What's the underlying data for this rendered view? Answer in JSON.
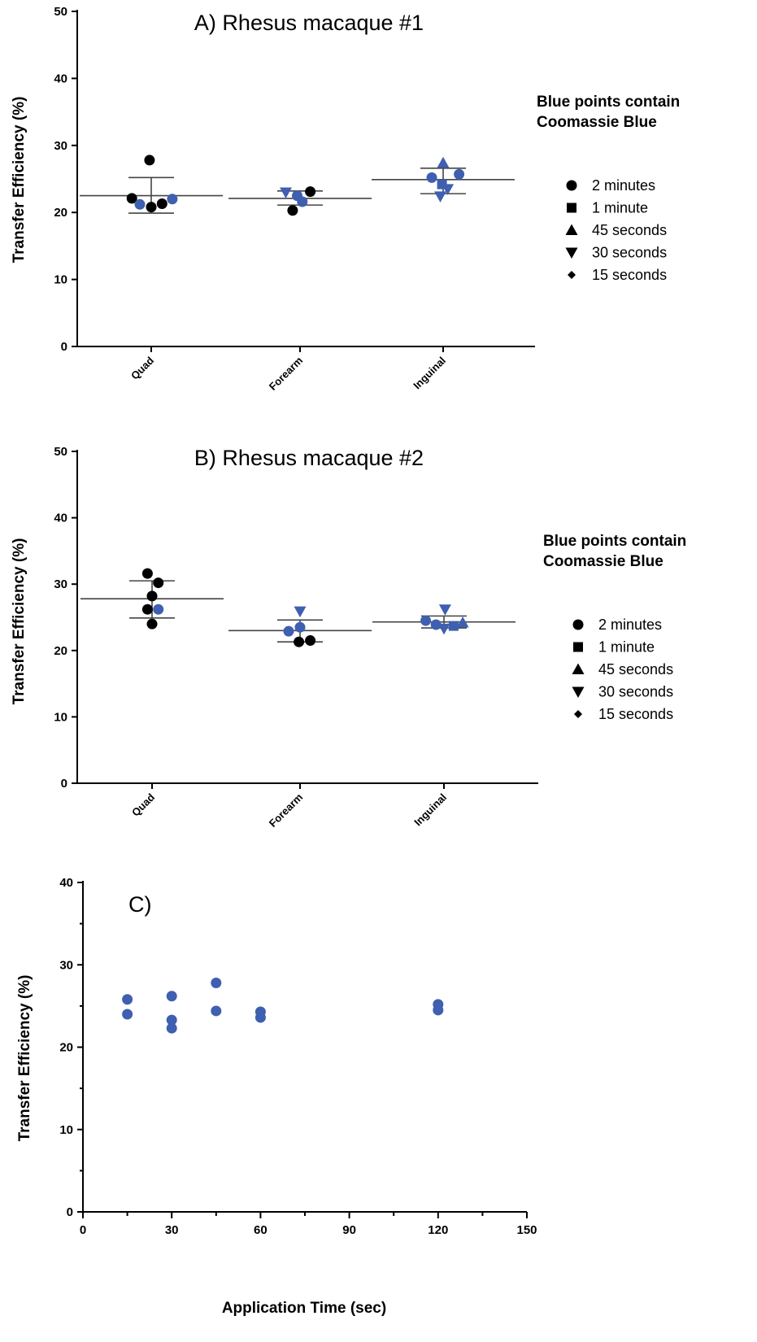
{
  "colors": {
    "blue": "#3f5fb0",
    "black": "#000000",
    "errorbar": "#444444"
  },
  "chart_data": [
    {
      "type": "scatter",
      "title": "A) Rhesus macaque #1",
      "ylabel": "Transfer Efficiency (%)",
      "xlabel": "",
      "categories": [
        "Quad",
        "Forearm",
        "Inguinal"
      ],
      "ylim": [
        0,
        50
      ],
      "yticks": [
        "0",
        "10",
        "20",
        "30",
        "40",
        "50"
      ],
      "note_lines": [
        "Blue points contain",
        "Coomassie Blue"
      ],
      "legend": [
        {
          "marker": "circle",
          "label": "2 minutes"
        },
        {
          "marker": "square",
          "label": "1 minute"
        },
        {
          "marker": "triangle-up",
          "label": "45 seconds"
        },
        {
          "marker": "triangle-down",
          "label": "30 seconds"
        },
        {
          "marker": "diamond",
          "label": "15 seconds"
        }
      ],
      "summary": [
        {
          "category": "Quad",
          "mean": 22.5,
          "sd_low": 19.9,
          "sd_high": 25.2
        },
        {
          "category": "Forearm",
          "mean": 22.1,
          "sd_low": 21.1,
          "sd_high": 23.2
        },
        {
          "category": "Inguinal",
          "mean": 24.9,
          "sd_low": 22.8,
          "sd_high": 26.6
        }
      ],
      "points": [
        {
          "category": "Quad",
          "offset": -0.34,
          "value": 22.1,
          "marker": "circle",
          "color": "black"
        },
        {
          "category": "Quad",
          "offset": -0.2,
          "value": 21.2,
          "marker": "circle",
          "color": "blue"
        },
        {
          "category": "Quad",
          "offset": -0.03,
          "value": 27.8,
          "marker": "circle",
          "color": "black"
        },
        {
          "category": "Quad",
          "offset": 0.0,
          "value": 20.8,
          "marker": "circle",
          "color": "black"
        },
        {
          "category": "Quad",
          "offset": 0.19,
          "value": 21.3,
          "marker": "circle",
          "color": "black"
        },
        {
          "category": "Quad",
          "offset": 0.37,
          "value": 22.0,
          "marker": "circle",
          "color": "blue"
        },
        {
          "category": "Forearm",
          "offset": -0.25,
          "value": 23.0,
          "marker": "triangle-down",
          "color": "blue"
        },
        {
          "category": "Forearm",
          "offset": -0.05,
          "value": 22.5,
          "marker": "circle",
          "color": "blue"
        },
        {
          "category": "Forearm",
          "offset": -0.13,
          "value": 20.3,
          "marker": "circle",
          "color": "black"
        },
        {
          "category": "Forearm",
          "offset": 0.04,
          "value": 21.6,
          "marker": "circle",
          "color": "blue"
        },
        {
          "category": "Forearm",
          "offset": 0.18,
          "value": 23.1,
          "marker": "circle",
          "color": "black"
        },
        {
          "category": "Inguinal",
          "offset": -0.2,
          "value": 25.2,
          "marker": "circle",
          "color": "blue"
        },
        {
          "category": "Inguinal",
          "offset": 0.0,
          "value": 27.4,
          "marker": "triangle-up",
          "color": "blue"
        },
        {
          "category": "Inguinal",
          "offset": -0.05,
          "value": 22.4,
          "marker": "triangle-down",
          "color": "blue"
        },
        {
          "category": "Inguinal",
          "offset": -0.02,
          "value": 24.2,
          "marker": "square",
          "color": "blue"
        },
        {
          "category": "Inguinal",
          "offset": 0.08,
          "value": 23.5,
          "marker": "triangle-down",
          "color": "blue"
        },
        {
          "category": "Inguinal",
          "offset": 0.28,
          "value": 25.7,
          "marker": "circle",
          "color": "blue"
        }
      ]
    },
    {
      "type": "scatter",
      "title": "B) Rhesus macaque #2",
      "ylabel": "Transfer Efficiency (%)",
      "xlabel": "",
      "categories": [
        "Quad",
        "Forearm",
        "Inguinal"
      ],
      "ylim": [
        0,
        50
      ],
      "yticks": [
        "0",
        "10",
        "20",
        "30",
        "40",
        "50"
      ],
      "note_lines": [
        "Blue points contain",
        "Coomassie Blue"
      ],
      "legend": [
        {
          "marker": "circle",
          "label": "2 minutes"
        },
        {
          "marker": "square",
          "label": "1 minute"
        },
        {
          "marker": "triangle-up",
          "label": "45 seconds"
        },
        {
          "marker": "triangle-down",
          "label": "30 seconds"
        },
        {
          "marker": "diamond",
          "label": "15 seconds"
        }
      ],
      "summary": [
        {
          "category": "Quad",
          "mean": 27.8,
          "sd_low": 24.9,
          "sd_high": 30.5
        },
        {
          "category": "Forearm",
          "mean": 23.0,
          "sd_low": 21.3,
          "sd_high": 24.6
        },
        {
          "category": "Inguinal",
          "mean": 24.3,
          "sd_low": 23.4,
          "sd_high": 25.2
        }
      ],
      "points": [
        {
          "category": "Quad",
          "offset": -0.08,
          "value": 31.6,
          "marker": "circle",
          "color": "black"
        },
        {
          "category": "Quad",
          "offset": 0.11,
          "value": 30.2,
          "marker": "circle",
          "color": "black"
        },
        {
          "category": "Quad",
          "offset": 0.0,
          "value": 28.2,
          "marker": "circle",
          "color": "black"
        },
        {
          "category": "Quad",
          "offset": -0.08,
          "value": 26.2,
          "marker": "circle",
          "color": "black"
        },
        {
          "category": "Quad",
          "offset": 0.11,
          "value": 26.2,
          "marker": "circle",
          "color": "blue"
        },
        {
          "category": "Quad",
          "offset": 0.0,
          "value": 24.0,
          "marker": "circle",
          "color": "black"
        },
        {
          "category": "Forearm",
          "offset": -0.2,
          "value": 22.9,
          "marker": "circle",
          "color": "blue"
        },
        {
          "category": "Forearm",
          "offset": 0.0,
          "value": 25.9,
          "marker": "triangle-down",
          "color": "blue"
        },
        {
          "category": "Forearm",
          "offset": 0.0,
          "value": 23.5,
          "marker": "circle",
          "color": "blue"
        },
        {
          "category": "Forearm",
          "offset": -0.02,
          "value": 21.3,
          "marker": "circle",
          "color": "black"
        },
        {
          "category": "Forearm",
          "offset": 0.18,
          "value": 21.5,
          "marker": "circle",
          "color": "black"
        },
        {
          "category": "Inguinal",
          "offset": -0.32,
          "value": 24.5,
          "marker": "circle",
          "color": "blue"
        },
        {
          "category": "Inguinal",
          "offset": -0.14,
          "value": 23.9,
          "marker": "circle",
          "color": "blue"
        },
        {
          "category": "Inguinal",
          "offset": 0.02,
          "value": 26.2,
          "marker": "triangle-down",
          "color": "blue"
        },
        {
          "category": "Inguinal",
          "offset": 0.0,
          "value": 23.3,
          "marker": "triangle-down",
          "color": "blue"
        },
        {
          "category": "Inguinal",
          "offset": 0.17,
          "value": 23.7,
          "marker": "square",
          "color": "blue"
        },
        {
          "category": "Inguinal",
          "offset": 0.33,
          "value": 24.2,
          "marker": "triangle-up",
          "color": "blue"
        }
      ]
    },
    {
      "type": "scatter",
      "title": "C)",
      "ylabel": "Transfer Efficiency (%)",
      "xlabel": "Application Time (sec)",
      "xlim": [
        0,
        150
      ],
      "ylim": [
        0,
        40
      ],
      "xticks": [
        "0",
        "30",
        "60",
        "90",
        "120",
        "150"
      ],
      "yticks": [
        "0",
        "10",
        "20",
        "30",
        "40"
      ],
      "points": [
        {
          "x": 15,
          "y": 25.8
        },
        {
          "x": 15,
          "y": 24.0
        },
        {
          "x": 30,
          "y": 26.2
        },
        {
          "x": 30,
          "y": 23.3
        },
        {
          "x": 30,
          "y": 22.3
        },
        {
          "x": 45,
          "y": 27.8
        },
        {
          "x": 45,
          "y": 24.4
        },
        {
          "x": 60,
          "y": 24.3
        },
        {
          "x": 60,
          "y": 23.6
        },
        {
          "x": 120,
          "y": 25.2
        },
        {
          "x": 120,
          "y": 24.5
        }
      ]
    }
  ]
}
